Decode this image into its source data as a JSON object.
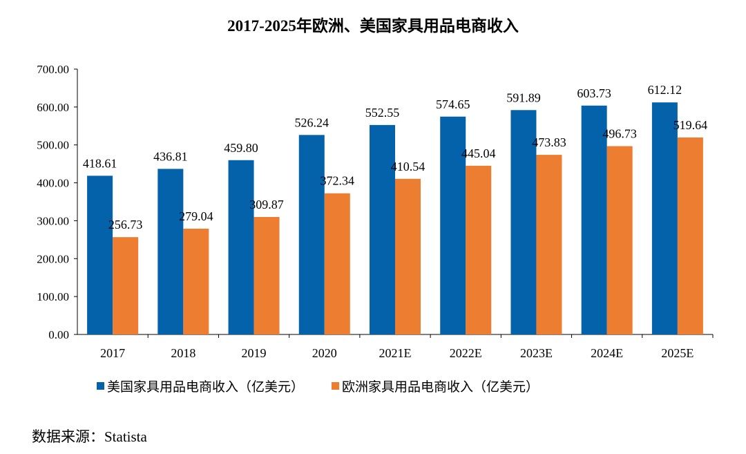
{
  "chart_data": {
    "type": "bar",
    "title": "2017-2025年欧洲、美国家具用品电商收入",
    "categories": [
      "2017",
      "2018",
      "2019",
      "2020",
      "2021E",
      "2022E",
      "2023E",
      "2024E",
      "2025E"
    ],
    "series": [
      {
        "name": "美国家具用品电商收入（亿美元）",
        "color": "#0462AA",
        "values": [
          418.61,
          436.81,
          459.8,
          526.24,
          552.55,
          574.65,
          591.89,
          603.73,
          612.12
        ]
      },
      {
        "name": "欧洲家具用品电商收入（亿美元）",
        "color": "#ED7D31",
        "values": [
          256.73,
          279.04,
          309.87,
          372.34,
          410.54,
          445.04,
          473.83,
          496.73,
          519.64
        ]
      }
    ],
    "ylim": [
      0,
      700
    ],
    "yticks": [
      "0.00",
      "100.00",
      "200.00",
      "300.00",
      "400.00",
      "500.00",
      "600.00",
      "700.00"
    ],
    "grid": false,
    "legend": "bottom"
  },
  "source": "数据来源：Statista"
}
